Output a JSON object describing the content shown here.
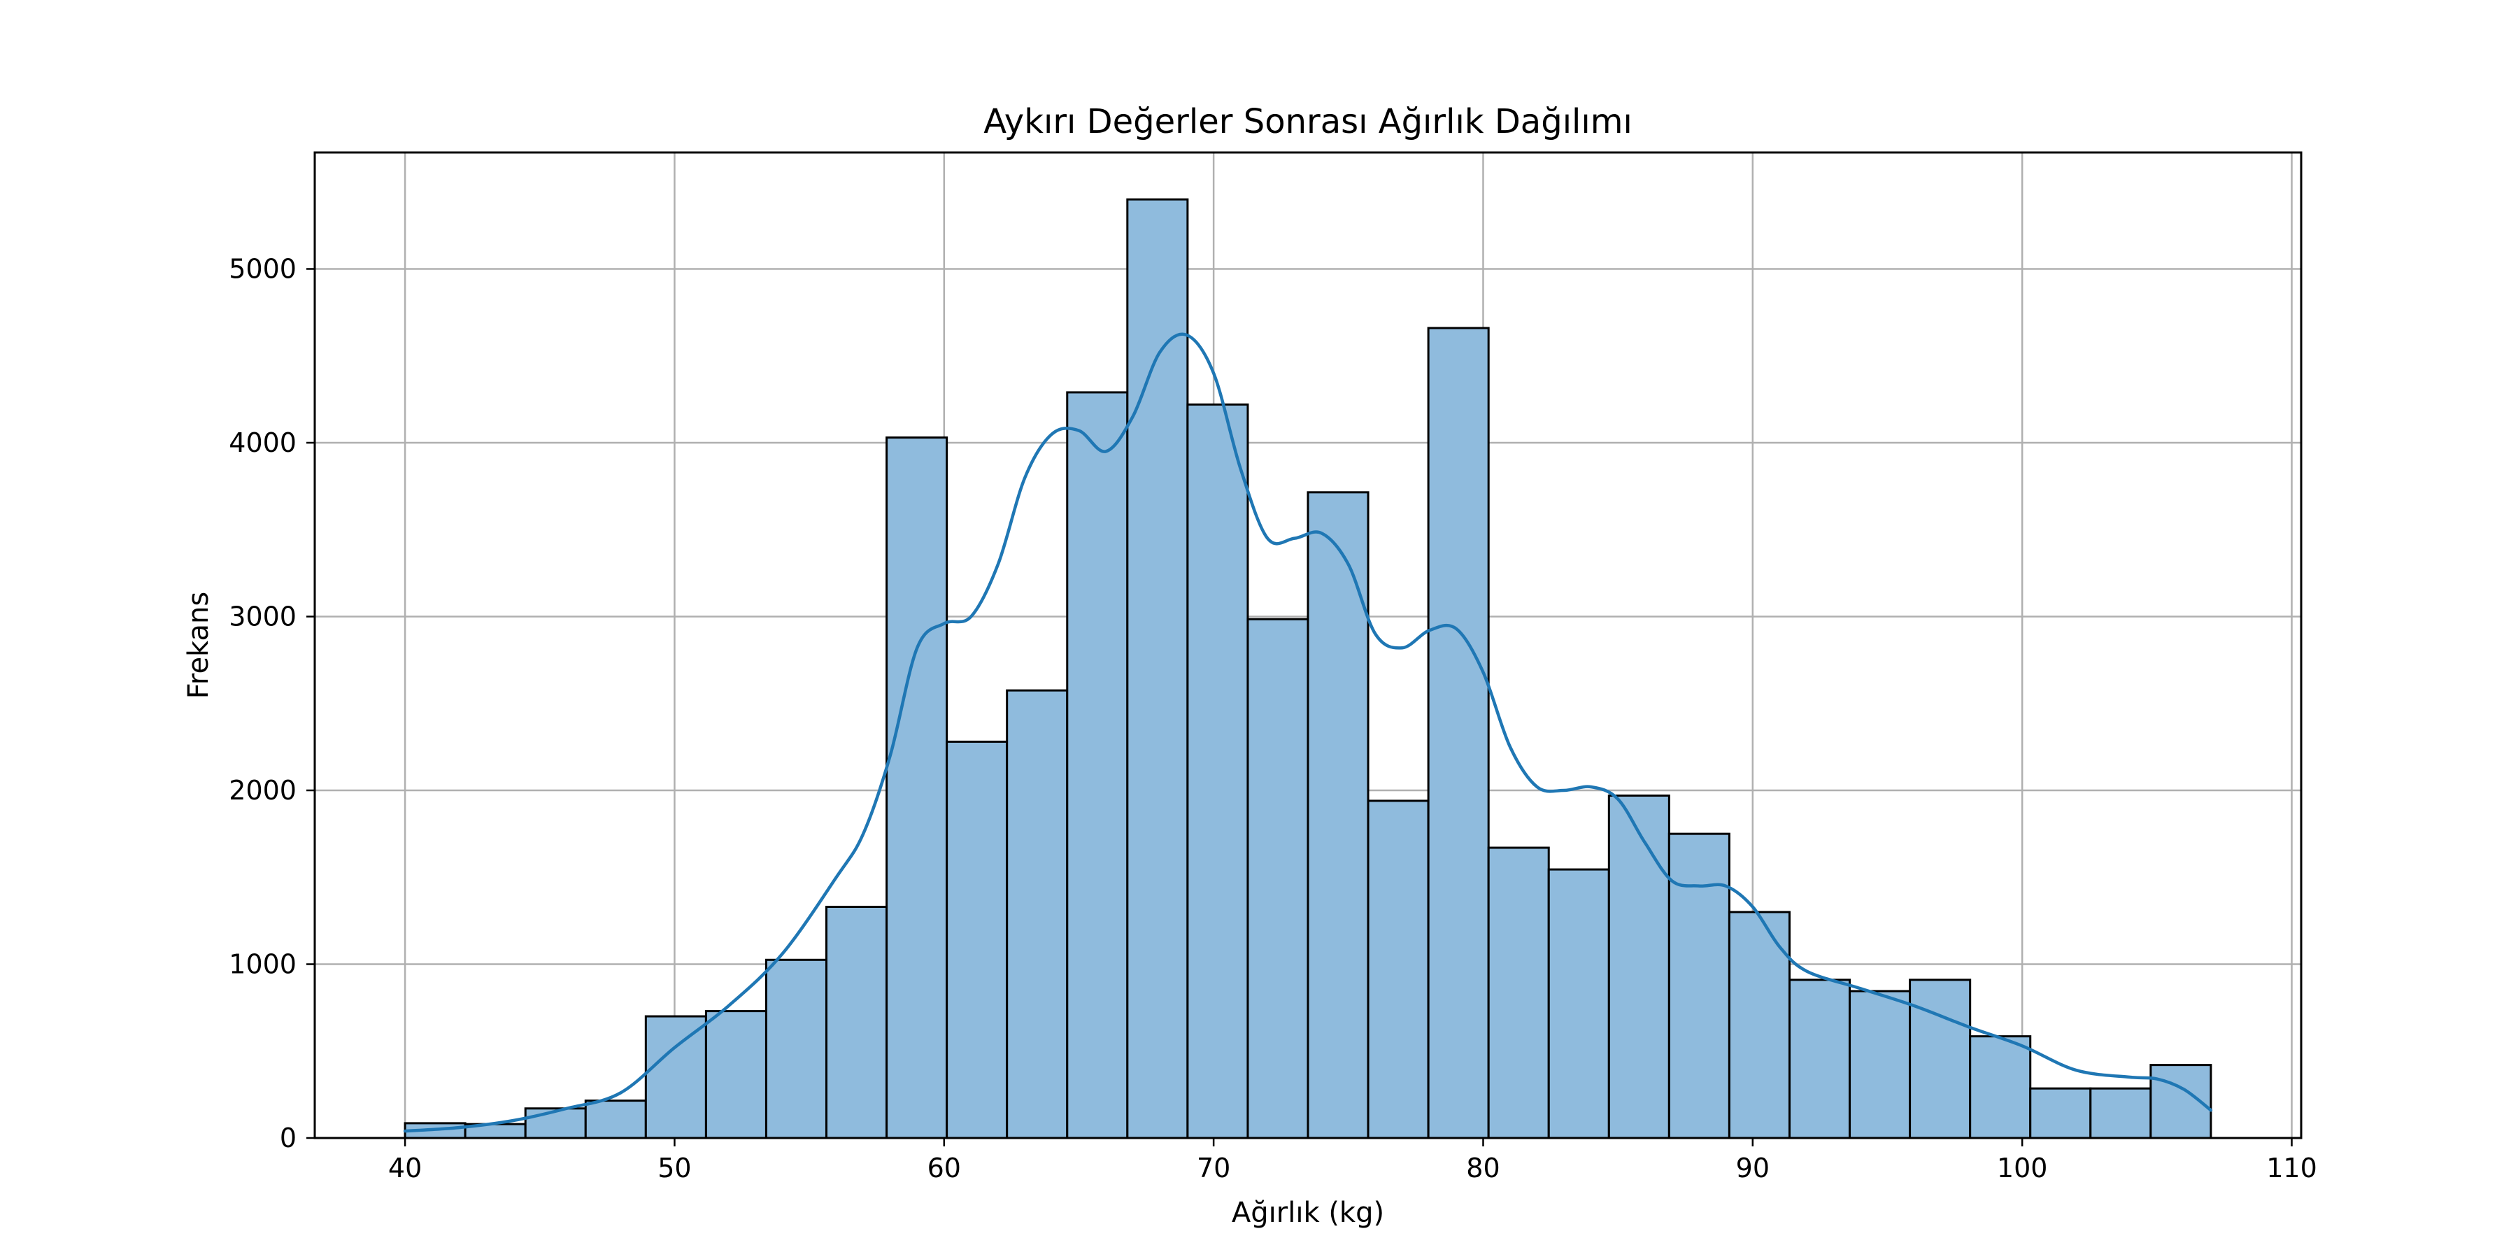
{
  "chart_data": {
    "type": "bar",
    "title": "Aykırı Değerler Sonrası Ağırlık Dağılımı",
    "xlabel": "Ağırlık (kg)",
    "ylabel": "Frekans",
    "xlim": [
      36.65,
      110.35
    ],
    "ylim": [
      0,
      5670
    ],
    "x_ticks": [
      40,
      50,
      60,
      70,
      80,
      90,
      100,
      110
    ],
    "x_tick_labels": [
      "40",
      "50",
      "60",
      "70",
      "80",
      "90",
      "100",
      "110"
    ],
    "y_ticks": [
      0,
      1000,
      2000,
      3000,
      4000,
      5000
    ],
    "y_tick_labels": [
      "0",
      "1000",
      "2000",
      "3000",
      "4000",
      "5000"
    ],
    "grid": true,
    "bin_start": 40.0,
    "bin_width": 2.233,
    "bins": [
      {
        "x0": 40.0,
        "x1": 42.233,
        "value": 85
      },
      {
        "x0": 42.233,
        "x1": 44.467,
        "value": 80
      },
      {
        "x0": 44.467,
        "x1": 46.7,
        "value": 170
      },
      {
        "x0": 46.7,
        "x1": 48.933,
        "value": 215
      },
      {
        "x0": 48.933,
        "x1": 51.167,
        "value": 700
      },
      {
        "x0": 51.167,
        "x1": 53.4,
        "value": 730
      },
      {
        "x0": 53.4,
        "x1": 55.633,
        "value": 1025
      },
      {
        "x0": 55.633,
        "x1": 57.867,
        "value": 1330
      },
      {
        "x0": 57.867,
        "x1": 60.1,
        "value": 4030
      },
      {
        "x0": 60.1,
        "x1": 62.333,
        "value": 2280
      },
      {
        "x0": 62.333,
        "x1": 64.567,
        "value": 2575
      },
      {
        "x0": 64.567,
        "x1": 66.8,
        "value": 4290
      },
      {
        "x0": 66.8,
        "x1": 69.033,
        "value": 5400
      },
      {
        "x0": 69.033,
        "x1": 71.267,
        "value": 4220
      },
      {
        "x0": 71.267,
        "x1": 73.5,
        "value": 2985
      },
      {
        "x0": 73.5,
        "x1": 75.733,
        "value": 3715
      },
      {
        "x0": 75.733,
        "x1": 77.967,
        "value": 1940
      },
      {
        "x0": 77.967,
        "x1": 80.2,
        "value": 4660
      },
      {
        "x0": 80.2,
        "x1": 82.433,
        "value": 1670
      },
      {
        "x0": 82.433,
        "x1": 84.667,
        "value": 1545
      },
      {
        "x0": 84.667,
        "x1": 86.9,
        "value": 1970
      },
      {
        "x0": 86.9,
        "x1": 89.133,
        "value": 1750
      },
      {
        "x0": 89.133,
        "x1": 91.367,
        "value": 1300
      },
      {
        "x0": 91.367,
        "x1": 93.6,
        "value": 910
      },
      {
        "x0": 93.6,
        "x1": 95.833,
        "value": 845
      },
      {
        "x0": 95.833,
        "x1": 98.067,
        "value": 910
      },
      {
        "x0": 98.067,
        "x1": 100.3,
        "value": 585
      },
      {
        "x0": 100.3,
        "x1": 102.533,
        "value": 285
      },
      {
        "x0": 102.533,
        "x1": 104.767,
        "value": 285
      },
      {
        "x0": 104.767,
        "x1": 107.0,
        "value": 420
      }
    ],
    "kde": {
      "x": [
        40,
        42,
        44,
        46,
        48,
        50,
        52,
        54,
        56,
        57,
        58,
        59,
        60,
        61,
        62,
        63,
        64,
        65,
        66,
        67,
        68,
        69,
        70,
        71,
        72,
        73,
        74,
        75,
        76,
        77,
        78,
        79,
        80,
        81,
        82,
        83,
        84,
        85,
        86,
        87,
        88,
        89,
        90,
        91,
        92,
        94,
        96,
        98,
        100,
        102,
        104,
        105,
        106,
        107
      ],
      "y": [
        40,
        60,
        100,
        170,
        260,
        520,
        760,
        1060,
        1500,
        1750,
        2200,
        2820,
        2960,
        3000,
        3300,
        3800,
        4050,
        4070,
        3950,
        4150,
        4520,
        4620,
        4400,
        3850,
        3450,
        3450,
        3480,
        3300,
        2900,
        2820,
        2920,
        2930,
        2680,
        2250,
        2020,
        2000,
        2020,
        1950,
        1700,
        1480,
        1450,
        1450,
        1330,
        1100,
        960,
        860,
        760,
        640,
        530,
        390,
        350,
        340,
        280,
        160
      ],
      "color": "#1f77b4"
    },
    "bar_fill": "#8fbbdd",
    "bar_edge": "#000000",
    "grid_color": "#b0b0b0"
  }
}
